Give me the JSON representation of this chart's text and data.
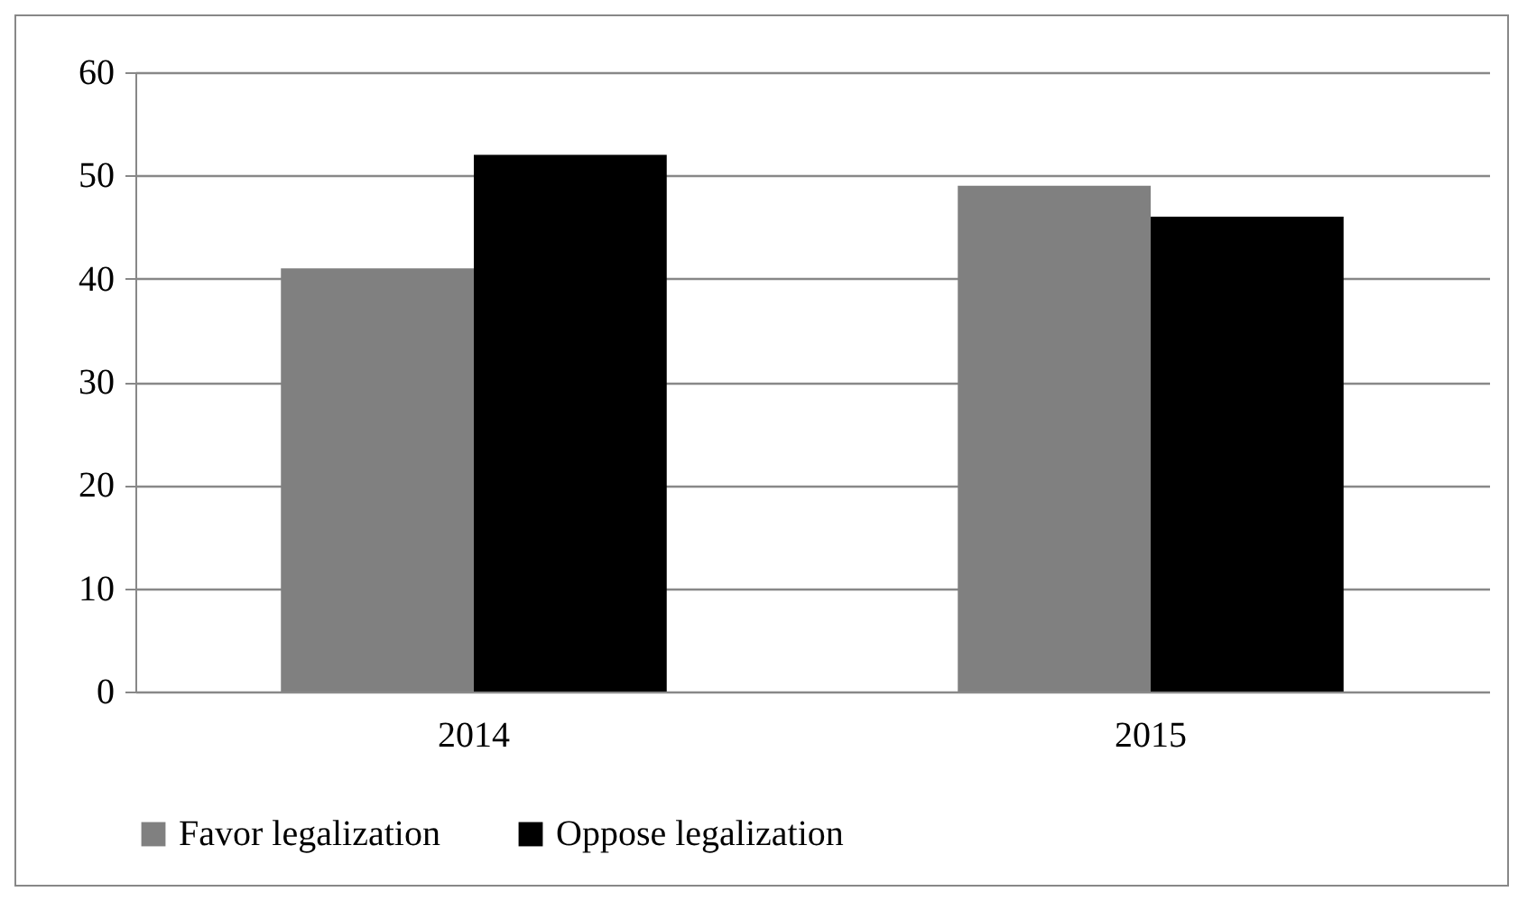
{
  "chart_data": {
    "type": "bar",
    "categories": [
      "2014",
      "2015"
    ],
    "series": [
      {
        "name": "Favor legalization",
        "color": "#808080",
        "values": [
          41,
          49
        ]
      },
      {
        "name": "Oppose legalization",
        "color": "#000000",
        "values": [
          52,
          46
        ]
      }
    ],
    "ylim": [
      0,
      60
    ],
    "yticks": [
      0,
      10,
      20,
      30,
      40,
      50,
      60
    ],
    "grid": "y",
    "legend": "bottom"
  }
}
